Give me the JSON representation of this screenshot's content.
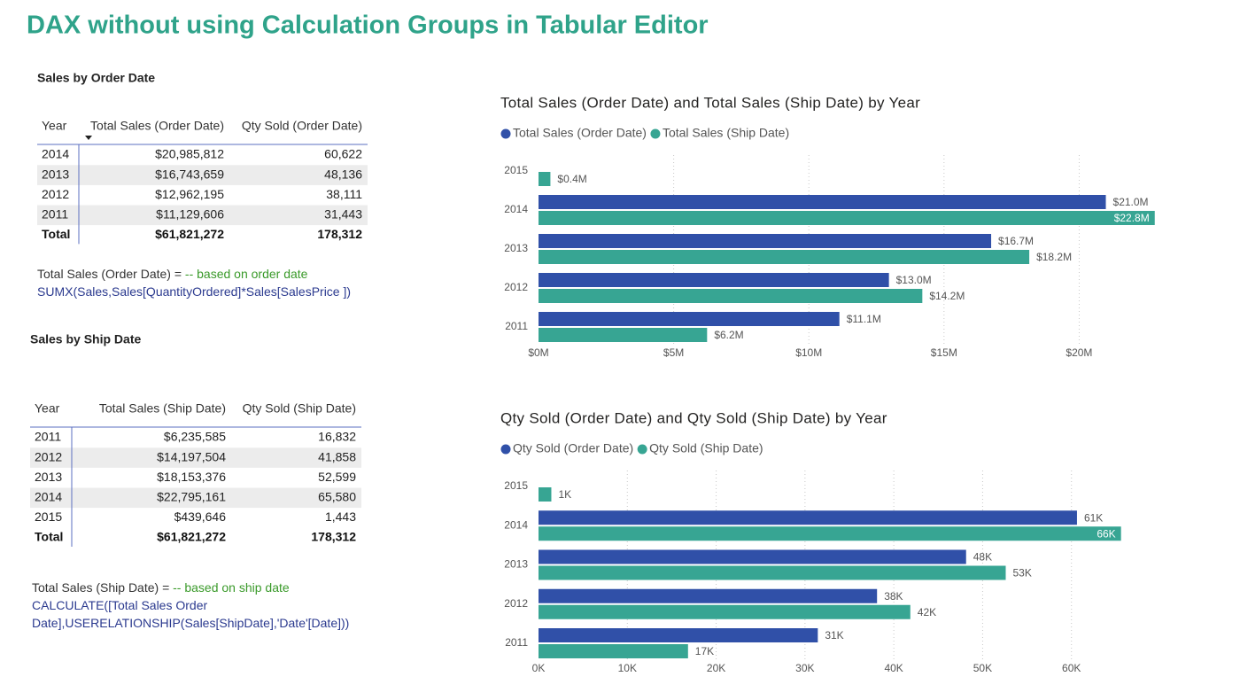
{
  "title": "DAX without using Calculation Groups in Tabular Editor",
  "tables": [
    {
      "title": "Sales by Order Date",
      "columns": [
        "Year",
        "Total Sales (Order Date)",
        "Qty Sold (Order Date)"
      ],
      "rows": [
        [
          "2014",
          "$20,985,812",
          "60,622"
        ],
        [
          "2013",
          "$16,743,659",
          "48,136"
        ],
        [
          "2012",
          "$12,962,195",
          "38,111"
        ],
        [
          "2011",
          "$11,129,606",
          "31,443"
        ]
      ],
      "total": [
        "Total",
        "$61,821,272",
        "178,312"
      ]
    },
    {
      "title": "Sales by Ship Date",
      "columns": [
        "Year",
        "Total Sales (Ship Date)",
        "Qty Sold (Ship Date)"
      ],
      "rows": [
        [
          "2011",
          "$6,235,585",
          "16,832"
        ],
        [
          "2012",
          "$14,197,504",
          "41,858"
        ],
        [
          "2013",
          "$18,153,376",
          "52,599"
        ],
        [
          "2014",
          "$22,795,161",
          "65,580"
        ],
        [
          "2015",
          "$439,646",
          "1,443"
        ]
      ],
      "total": [
        "Total",
        "$61,821,272",
        "178,312"
      ]
    }
  ],
  "formulas": [
    {
      "name": "Total Sales (Order Date) =",
      "comment": "-- based on order date",
      "code": "SUMX(Sales,Sales[QuantityOrdered]*Sales[SalesPrice ])"
    },
    {
      "name": "Total Sales (Ship Date) =",
      "comment": "-- based on ship date",
      "code": "CALCULATE([Total Sales Order Date],USERELATIONSHIP(Sales[ShipDate],'Date'[Date]))"
    }
  ],
  "chart_data": [
    {
      "type": "hbar",
      "title": "Total Sales (Order Date) and Total Sales (Ship Date) by Year",
      "categories": [
        "2015",
        "2014",
        "2013",
        "2012",
        "2011"
      ],
      "series": [
        {
          "name": "Total Sales (Order Date)",
          "color": "#3050a8",
          "values": [
            null,
            20985812,
            16743659,
            12962195,
            11129606
          ],
          "value_labels": [
            null,
            "$21.0M",
            "$16.7M",
            "$13.0M",
            "$11.1M"
          ]
        },
        {
          "name": "Total Sales (Ship Date)",
          "color": "#37a593",
          "values": [
            439646,
            22795161,
            18153376,
            14197504,
            6235585
          ],
          "value_labels": [
            "$0.4M",
            "$22.8M",
            "$18.2M",
            "$14.2M",
            "$6.2M"
          ]
        }
      ],
      "xlim": [
        0,
        23000000
      ],
      "xticks": [
        {
          "value": 0,
          "label": "$0M"
        },
        {
          "value": 5000000,
          "label": "$5M"
        },
        {
          "value": 10000000,
          "label": "$10M"
        },
        {
          "value": 15000000,
          "label": "$15M"
        },
        {
          "value": 20000000,
          "label": "$20M"
        }
      ],
      "grid": true,
      "legend": "top"
    },
    {
      "type": "hbar",
      "title": "Qty Sold (Order Date) and Qty Sold (Ship Date) by Year",
      "categories": [
        "2015",
        "2014",
        "2013",
        "2012",
        "2011"
      ],
      "series": [
        {
          "name": "Qty Sold (Order Date)",
          "color": "#3050a8",
          "values": [
            null,
            60622,
            48136,
            38111,
            31443
          ],
          "value_labels": [
            null,
            "61K",
            "48K",
            "38K",
            "31K"
          ]
        },
        {
          "name": "Qty Sold (Ship Date)",
          "color": "#37a593",
          "values": [
            1443,
            65580,
            52599,
            41858,
            16832
          ],
          "value_labels": [
            "1K",
            "66K",
            "53K",
            "42K",
            "17K"
          ]
        }
      ],
      "xlim": [
        0,
        70000
      ],
      "xticks": [
        {
          "value": 0,
          "label": "0K"
        },
        {
          "value": 10000,
          "label": "10K"
        },
        {
          "value": 20000,
          "label": "20K"
        },
        {
          "value": 30000,
          "label": "30K"
        },
        {
          "value": 40000,
          "label": "40K"
        },
        {
          "value": 50000,
          "label": "50K"
        },
        {
          "value": 60000,
          "label": "60K"
        }
      ],
      "grid": true,
      "legend": "top"
    }
  ]
}
